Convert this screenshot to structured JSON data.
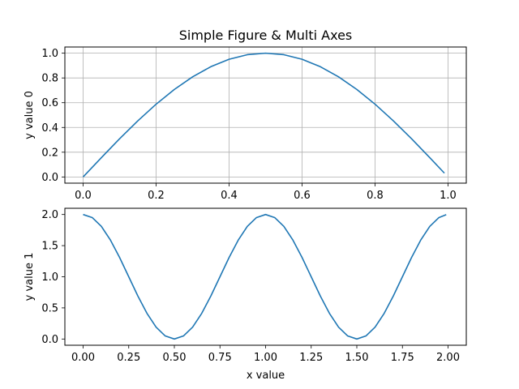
{
  "figure": {
    "title": "Simple Figure & Multi Axes"
  },
  "chart_data": [
    {
      "type": "line",
      "title": "Simple Figure & Multi Axes",
      "xlabel": "",
      "ylabel": "y value 0",
      "xlim": [
        -0.05,
        1.05
      ],
      "ylim": [
        -0.05,
        1.05
      ],
      "xticks": [
        0.0,
        0.2,
        0.4,
        0.6,
        0.8,
        1.0
      ],
      "xtick_labels": [
        "0.0",
        "0.2",
        "0.4",
        "0.6",
        "0.8",
        "1.0"
      ],
      "yticks": [
        0.0,
        0.2,
        0.4,
        0.6,
        0.8,
        1.0
      ],
      "ytick_labels": [
        "0.0",
        "0.2",
        "0.4",
        "0.6",
        "0.8",
        "1.0"
      ],
      "grid": true,
      "color": "#1f77b4",
      "x": [
        0.0,
        0.05,
        0.1,
        0.15,
        0.2,
        0.25,
        0.3,
        0.35,
        0.4,
        0.45,
        0.5,
        0.55,
        0.6,
        0.65,
        0.7,
        0.75,
        0.8,
        0.85,
        0.9,
        0.95,
        0.99
      ],
      "y": [
        0.0,
        0.156,
        0.309,
        0.454,
        0.588,
        0.707,
        0.809,
        0.891,
        0.951,
        0.988,
        1.0,
        0.988,
        0.951,
        0.891,
        0.809,
        0.707,
        0.588,
        0.454,
        0.309,
        0.156,
        0.031
      ]
    },
    {
      "type": "line",
      "title": "",
      "xlabel": "x value",
      "ylabel": "y value 1",
      "xlim": [
        -0.1,
        2.1
      ],
      "ylim": [
        -0.1,
        2.1
      ],
      "xticks": [
        0.0,
        0.25,
        0.5,
        0.75,
        1.0,
        1.25,
        1.5,
        1.75,
        2.0
      ],
      "xtick_labels": [
        "0.00",
        "0.25",
        "0.50",
        "0.75",
        "1.00",
        "1.25",
        "1.50",
        "1.75",
        "2.00"
      ],
      "yticks": [
        0.0,
        0.5,
        1.0,
        1.5,
        2.0
      ],
      "ytick_labels": [
        "0.0",
        "0.5",
        "1.0",
        "1.5",
        "2.0"
      ],
      "grid": false,
      "color": "#1f77b4",
      "x": [
        0.0,
        0.05,
        0.1,
        0.15,
        0.2,
        0.25,
        0.3,
        0.35,
        0.4,
        0.45,
        0.5,
        0.55,
        0.6,
        0.65,
        0.7,
        0.75,
        0.8,
        0.85,
        0.9,
        0.95,
        1.0,
        1.05,
        1.1,
        1.15,
        1.2,
        1.25,
        1.3,
        1.35,
        1.4,
        1.45,
        1.5,
        1.55,
        1.6,
        1.65,
        1.7,
        1.75,
        1.8,
        1.85,
        1.9,
        1.95,
        1.99
      ],
      "y": [
        2.0,
        1.951,
        1.809,
        1.588,
        1.309,
        1.0,
        0.691,
        0.412,
        0.191,
        0.049,
        0.0,
        0.049,
        0.191,
        0.412,
        0.691,
        1.0,
        1.309,
        1.588,
        1.809,
        1.951,
        2.0,
        1.951,
        1.809,
        1.588,
        1.309,
        1.0,
        0.691,
        0.412,
        0.191,
        0.049,
        0.0,
        0.049,
        0.191,
        0.412,
        0.691,
        1.0,
        1.309,
        1.588,
        1.809,
        1.951,
        1.998
      ]
    }
  ]
}
